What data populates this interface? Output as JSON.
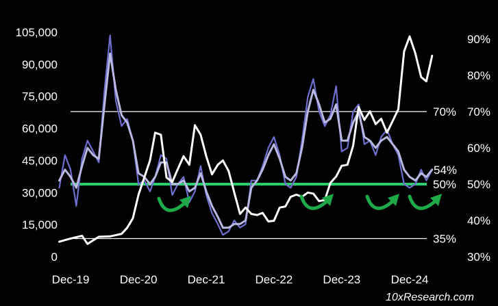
{
  "chart_data": {
    "type": "line",
    "title": "",
    "xlabel": "",
    "ylabel": "",
    "x_ticks": [
      "Dec-19",
      "Dec-20",
      "Dec-21",
      "Dec-22",
      "Dec-23",
      "Dec-24"
    ],
    "y_left_ticks": [
      "0",
      "15,000",
      "30,000",
      "45,000",
      "60,000",
      "75,000",
      "90,000",
      "105,000"
    ],
    "y_left_lim": [
      0,
      105000
    ],
    "y_right_ticks": [
      "30%",
      "40%",
      "50%",
      "60%",
      "70%",
      "80%",
      "90%"
    ],
    "y_right_lim": [
      30,
      90
    ],
    "grid": false,
    "reference_lines": [
      {
        "value": 70,
        "label": "70%",
        "color": "#ffffff"
      },
      {
        "value": 50,
        "label": "50%",
        "color": "#2ecc71"
      },
      {
        "value": 35,
        "label": "35%",
        "color": "#ffffff"
      }
    ],
    "annotations": [
      {
        "label": "54%",
        "value": 54
      }
    ],
    "colors": {
      "price": "#ffffff",
      "percent_raw": "#6f6fd0",
      "percent_smooth": "#b8b8e0",
      "support": "#2ecc71",
      "arrows": "#1faa4a"
    },
    "series": [
      {
        "axis": "left",
        "style": "price",
        "x": [
          "2019-10",
          "2019-12",
          "2020-02",
          "2020-03",
          "2020-05",
          "2020-07",
          "2020-09",
          "2020-10",
          "2020-11",
          "2020-12",
          "2021-01",
          "2021-02",
          "2021-03",
          "2021-04",
          "2021-05",
          "2021-06",
          "2021-07",
          "2021-08",
          "2021-09",
          "2021-10",
          "2021-11",
          "2021-12",
          "2022-01",
          "2022-02",
          "2022-03",
          "2022-04",
          "2022-05",
          "2022-06",
          "2022-07",
          "2022-08",
          "2022-09",
          "2022-10",
          "2022-11",
          "2022-12",
          "2023-01",
          "2023-02",
          "2023-03",
          "2023-04",
          "2023-05",
          "2023-06",
          "2023-07",
          "2023-08",
          "2023-09",
          "2023-10",
          "2023-11",
          "2023-12",
          "2024-01",
          "2024-02",
          "2024-03",
          "2024-04",
          "2024-05",
          "2024-06",
          "2024-07",
          "2024-08",
          "2024-09",
          "2024-10",
          "2024-11",
          "2024-12",
          "2025-01",
          "2025-02",
          "2025-03",
          "2025-04"
        ],
        "values": [
          7000,
          8500,
          9800,
          6000,
          9300,
          9500,
          10700,
          13500,
          18000,
          29000,
          37000,
          45000,
          58000,
          57000,
          37000,
          35000,
          41000,
          47000,
          43000,
          61500,
          57000,
          47000,
          38500,
          43000,
          45000,
          40000,
          30000,
          20000,
          23000,
          20000,
          19500,
          20500,
          16500,
          16800,
          23000,
          23500,
          28000,
          29000,
          28000,
          30000,
          29500,
          26000,
          26500,
          34500,
          37500,
          42500,
          43000,
          52000,
          70000,
          64000,
          68000,
          62000,
          64500,
          58000,
          63500,
          69000,
          96000,
          103000,
          95000,
          84000,
          82000,
          94000
        ]
      },
      {
        "axis": "right",
        "style": "percent_raw",
        "x": [
          "2019-10",
          "2019-11",
          "2019-12",
          "2020-01",
          "2020-02",
          "2020-03",
          "2020-04",
          "2020-05",
          "2020-06",
          "2020-07",
          "2020-08",
          "2020-09",
          "2020-10",
          "2020-11",
          "2020-12",
          "2021-01",
          "2021-02",
          "2021-03",
          "2021-04",
          "2021-05",
          "2021-06",
          "2021-07",
          "2021-08",
          "2021-09",
          "2021-10",
          "2021-11",
          "2021-12",
          "2022-01",
          "2022-02",
          "2022-03",
          "2022-04",
          "2022-05",
          "2022-06",
          "2022-07",
          "2022-08",
          "2022-09",
          "2022-10",
          "2022-11",
          "2022-12",
          "2023-01",
          "2023-02",
          "2023-03",
          "2023-04",
          "2023-05",
          "2023-06",
          "2023-07",
          "2023-08",
          "2023-09",
          "2023-10",
          "2023-11",
          "2023-12",
          "2024-01",
          "2024-02",
          "2024-03",
          "2024-04",
          "2024-05",
          "2024-06",
          "2024-07",
          "2024-08",
          "2024-09",
          "2024-10",
          "2024-11",
          "2024-12",
          "2025-01",
          "2025-02",
          "2025-03",
          "2025-04"
        ],
        "values": [
          49,
          58,
          54,
          44,
          57,
          62,
          59,
          56,
          76,
          91,
          73,
          66,
          68,
          62,
          50,
          51,
          48,
          52,
          58,
          57,
          47,
          50,
          52,
          45,
          48,
          55,
          47,
          42,
          39,
          36,
          37,
          40,
          38,
          39,
          51,
          51,
          55,
          60,
          63,
          58,
          50,
          49,
          52,
          62,
          74,
          79,
          70,
          66,
          69,
          77,
          59,
          60,
          70,
          72,
          61,
          62,
          58,
          63,
          65,
          61,
          58,
          50,
          49,
          50,
          54,
          51,
          54
        ]
      },
      {
        "axis": "right",
        "style": "percent_smooth",
        "x": [
          "2019-10",
          "2019-11",
          "2019-12",
          "2020-01",
          "2020-02",
          "2020-03",
          "2020-04",
          "2020-05",
          "2020-06",
          "2020-07",
          "2020-08",
          "2020-09",
          "2020-10",
          "2020-11",
          "2020-12",
          "2021-01",
          "2021-02",
          "2021-03",
          "2021-04",
          "2021-05",
          "2021-06",
          "2021-07",
          "2021-08",
          "2021-09",
          "2021-10",
          "2021-11",
          "2021-12",
          "2022-01",
          "2022-02",
          "2022-03",
          "2022-04",
          "2022-05",
          "2022-06",
          "2022-07",
          "2022-08",
          "2022-09",
          "2022-10",
          "2022-11",
          "2022-12",
          "2023-01",
          "2023-02",
          "2023-03",
          "2023-04",
          "2023-05",
          "2023-06",
          "2023-07",
          "2023-08",
          "2023-09",
          "2023-10",
          "2023-11",
          "2023-12",
          "2024-01",
          "2024-02",
          "2024-03",
          "2024-04",
          "2024-05",
          "2024-06",
          "2024-07",
          "2024-08",
          "2024-09",
          "2024-10",
          "2024-11",
          "2024-12",
          "2025-01",
          "2025-02",
          "2025-03",
          "2025-04"
        ],
        "values": [
          51,
          54,
          52,
          49,
          55,
          60,
          58,
          57,
          72,
          86,
          76,
          69,
          67,
          62,
          53,
          52,
          50,
          52,
          56,
          56,
          50,
          50,
          51,
          48,
          49,
          53,
          48,
          44,
          41,
          38,
          38,
          39,
          39,
          40,
          49,
          51,
          54,
          58,
          61,
          57,
          52,
          51,
          53,
          60,
          70,
          76,
          72,
          67,
          68,
          72,
          62,
          62,
          67,
          70,
          63,
          62,
          60,
          62,
          63,
          61,
          59,
          54,
          52,
          51,
          53,
          52,
          54
        ]
      }
    ]
  },
  "watermark": "10xResearch.com"
}
